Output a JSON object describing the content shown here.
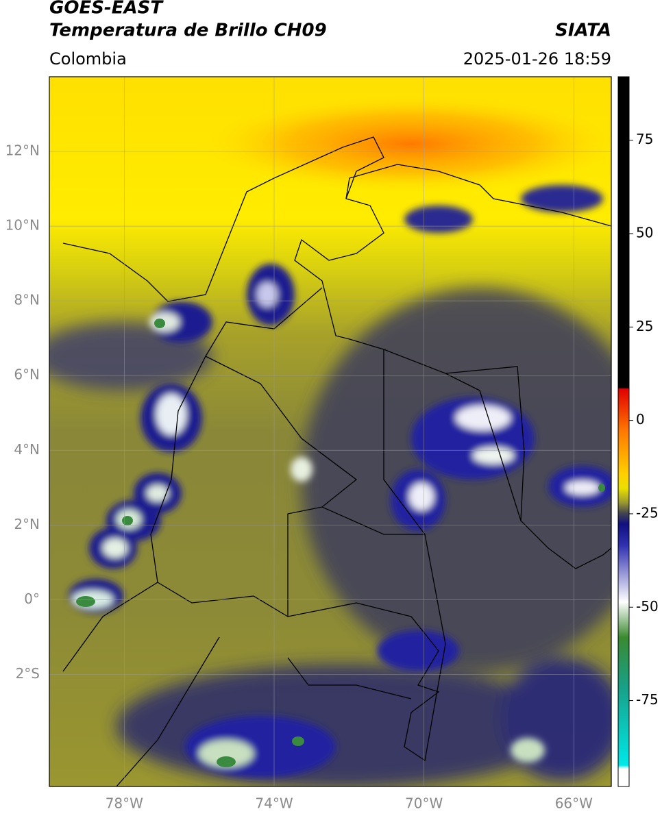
{
  "header": {
    "title": "GOES-EAST",
    "subtitle": "Temperatura de Brillo CH09",
    "source": "SIATA",
    "region": "Colombia",
    "timestamp": "2025-01-26 18:59"
  },
  "map": {
    "lon_range": [
      -80,
      -65
    ],
    "lat_range": [
      -5,
      14
    ],
    "lon_ticks": [
      {
        "value": -78,
        "label": "78°W"
      },
      {
        "value": -74,
        "label": "74°W"
      },
      {
        "value": -70,
        "label": "70°W"
      },
      {
        "value": -66,
        "label": "66°W"
      }
    ],
    "lat_ticks": [
      {
        "value": 12,
        "label": "12°N"
      },
      {
        "value": 10,
        "label": "10°N"
      },
      {
        "value": 8,
        "label": "8°N"
      },
      {
        "value": 6,
        "label": "6°N"
      },
      {
        "value": 4,
        "label": "4°N"
      },
      {
        "value": 2,
        "label": "2°N"
      },
      {
        "value": 0,
        "label": "0°"
      },
      {
        "value": -2,
        "label": "2°S"
      }
    ]
  },
  "colorbar": {
    "range": [
      -98,
      92
    ],
    "ticks": [
      75,
      50,
      25,
      0,
      -25,
      -50,
      -75
    ]
  }
}
